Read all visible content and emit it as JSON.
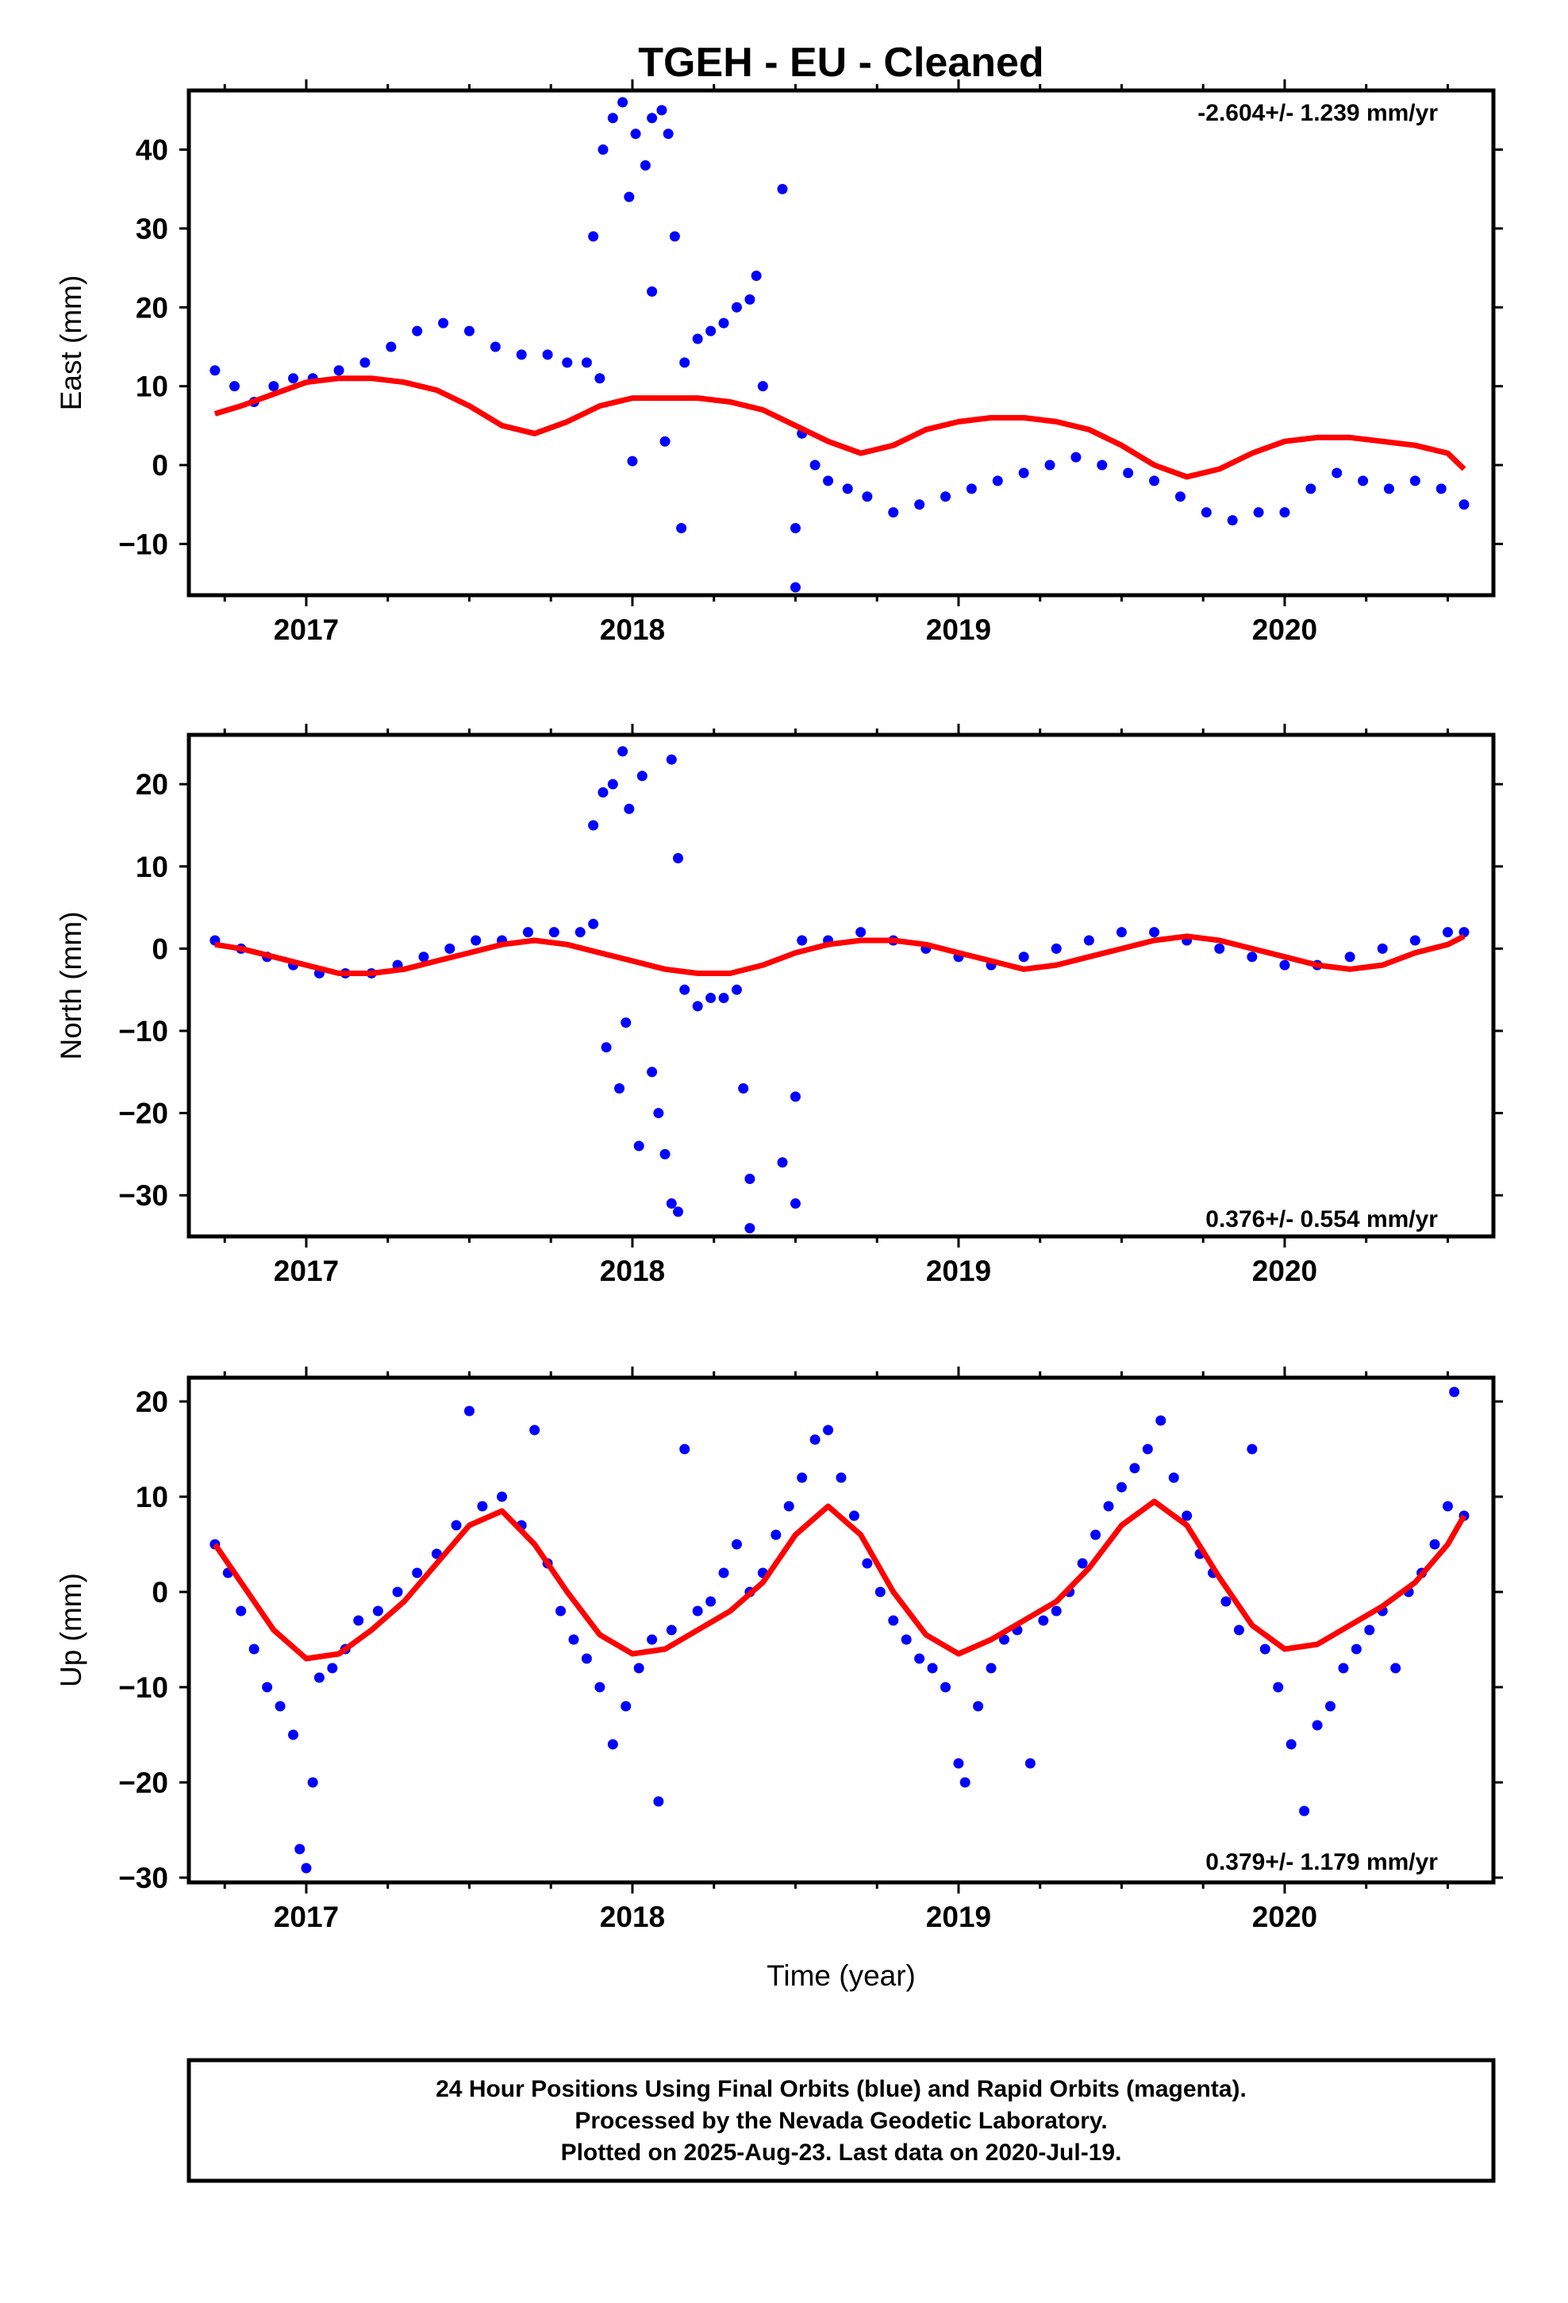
{
  "title": "TGEH  - EU - Cleaned",
  "xlabel": "Time (year)",
  "footer": [
    "24 Hour Positions Using Final Orbits (blue) and Rapid Orbits (magenta).",
    "Processed by the Nevada Geodetic Laboratory.",
    "Plotted on 2025-Aug-23. Last data on 2020-Jul-19."
  ],
  "colors": {
    "data": "#0000ff",
    "fit": "#ff0000",
    "frame": "#000000"
  },
  "chart_data": [
    {
      "type": "scatter",
      "ylabel": "East (mm)",
      "rate": "-2.604+/- 1.239 mm/yr",
      "xlim": [
        2016.64,
        2020.64
      ],
      "ylim": [
        -16.5,
        47.5
      ],
      "xticks": [
        2017,
        2018,
        2019,
        2020
      ],
      "xtick_labels": [
        "2017",
        "2018",
        "2019",
        "2020"
      ],
      "yticks": [
        -10,
        0,
        10,
        20,
        30,
        40
      ],
      "ytick_labels": [
        "−10",
        "0",
        "10",
        "20",
        "30",
        "40"
      ],
      "points": [
        [
          2016.72,
          12
        ],
        [
          2016.78,
          10
        ],
        [
          2016.84,
          8
        ],
        [
          2016.9,
          10
        ],
        [
          2016.96,
          11
        ],
        [
          2017.02,
          11
        ],
        [
          2017.1,
          12
        ],
        [
          2017.18,
          13
        ],
        [
          2017.26,
          15
        ],
        [
          2017.34,
          17
        ],
        [
          2017.42,
          18
        ],
        [
          2017.5,
          17
        ],
        [
          2017.58,
          15
        ],
        [
          2017.66,
          14
        ],
        [
          2017.74,
          14
        ],
        [
          2017.8,
          13
        ],
        [
          2017.86,
          13
        ],
        [
          2017.9,
          11
        ],
        [
          2017.88,
          29
        ],
        [
          2017.91,
          40
        ],
        [
          2017.94,
          44
        ],
        [
          2017.97,
          46
        ],
        [
          2017.99,
          34
        ],
        [
          2018.01,
          42
        ],
        [
          2018.04,
          38
        ],
        [
          2018.06,
          44
        ],
        [
          2018.09,
          45
        ],
        [
          2018.11,
          42
        ],
        [
          2018.13,
          29
        ],
        [
          2018.0,
          0.5
        ],
        [
          2018.06,
          22
        ],
        [
          2018.1,
          3
        ],
        [
          2018.15,
          -8
        ],
        [
          2018.16,
          13
        ],
        [
          2018.2,
          16
        ],
        [
          2018.24,
          17
        ],
        [
          2018.28,
          18
        ],
        [
          2018.32,
          20
        ],
        [
          2018.36,
          21
        ],
        [
          2018.38,
          24
        ],
        [
          2018.4,
          10
        ],
        [
          2018.46,
          35
        ],
        [
          2018.5,
          -8
        ],
        [
          2018.5,
          -15.5
        ],
        [
          2018.52,
          4
        ],
        [
          2018.56,
          0
        ],
        [
          2018.6,
          -2
        ],
        [
          2018.66,
          -3
        ],
        [
          2018.72,
          -4
        ],
        [
          2018.8,
          -6
        ],
        [
          2018.88,
          -5
        ],
        [
          2018.96,
          -4
        ],
        [
          2019.04,
          -3
        ],
        [
          2019.12,
          -2
        ],
        [
          2019.2,
          -1
        ],
        [
          2019.28,
          0
        ],
        [
          2019.36,
          1
        ],
        [
          2019.44,
          0
        ],
        [
          2019.52,
          -1
        ],
        [
          2019.6,
          -2
        ],
        [
          2019.68,
          -4
        ],
        [
          2019.76,
          -6
        ],
        [
          2019.84,
          -7
        ],
        [
          2019.92,
          -6
        ],
        [
          2020.0,
          -6
        ],
        [
          2020.08,
          -3
        ],
        [
          2020.16,
          -1
        ],
        [
          2020.24,
          -2
        ],
        [
          2020.32,
          -3
        ],
        [
          2020.4,
          -2
        ],
        [
          2020.48,
          -3
        ],
        [
          2020.55,
          -5
        ]
      ],
      "fit_x": [
        2016.72,
        2016.8,
        2016.9,
        2017.0,
        2017.1,
        2017.2,
        2017.3,
        2017.4,
        2017.5,
        2017.6,
        2017.7,
        2017.8,
        2017.9,
        2018.0,
        2018.1,
        2018.2,
        2018.3,
        2018.4,
        2018.5,
        2018.6,
        2018.7,
        2018.8,
        2018.9,
        2019.0,
        2019.1,
        2019.2,
        2019.3,
        2019.4,
        2019.5,
        2019.6,
        2019.7,
        2019.8,
        2019.9,
        2020.0,
        2020.1,
        2020.2,
        2020.3,
        2020.4,
        2020.5,
        2020.55
      ],
      "fit_y": [
        6.5,
        7.5,
        9,
        10.5,
        11,
        11,
        10.5,
        9.5,
        7.5,
        5,
        4,
        5.5,
        7.5,
        8.5,
        8.5,
        8.5,
        8,
        7,
        5,
        3,
        1.5,
        2.5,
        4.5,
        5.5,
        6,
        6,
        5.5,
        4.5,
        2.5,
        0,
        -1.5,
        -0.5,
        1.5,
        3,
        3.5,
        3.5,
        3,
        2.5,
        1.5,
        -0.5
      ]
    },
    {
      "type": "scatter",
      "ylabel": "North (mm)",
      "rate": "0.376+/- 0.554 mm/yr",
      "xlim": [
        2016.64,
        2020.64
      ],
      "ylim": [
        -35,
        26
      ],
      "xticks": [
        2017,
        2018,
        2019,
        2020
      ],
      "xtick_labels": [
        "2017",
        "2018",
        "2019",
        "2020"
      ],
      "yticks": [
        -30,
        -20,
        -10,
        0,
        10,
        20
      ],
      "ytick_labels": [
        "−30",
        "−20",
        "−10",
        "0",
        "10",
        "20"
      ],
      "points": [
        [
          2016.72,
          1
        ],
        [
          2016.8,
          0
        ],
        [
          2016.88,
          -1
        ],
        [
          2016.96,
          -2
        ],
        [
          2017.04,
          -3
        ],
        [
          2017.12,
          -3
        ],
        [
          2017.2,
          -3
        ],
        [
          2017.28,
          -2
        ],
        [
          2017.36,
          -1
        ],
        [
          2017.44,
          0
        ],
        [
          2017.52,
          1
        ],
        [
          2017.6,
          1
        ],
        [
          2017.68,
          2
        ],
        [
          2017.76,
          2
        ],
        [
          2017.84,
          2
        ],
        [
          2017.88,
          3
        ],
        [
          2017.88,
          15
        ],
        [
          2017.91,
          19
        ],
        [
          2017.94,
          20
        ],
        [
          2017.97,
          24
        ],
        [
          2017.99,
          17
        ],
        [
          2018.03,
          21
        ],
        [
          2018.12,
          23
        ],
        [
          2018.14,
          11
        ],
        [
          2017.92,
          -12
        ],
        [
          2017.96,
          -17
        ],
        [
          2017.98,
          -9
        ],
        [
          2018.02,
          -24
        ],
        [
          2018.06,
          -15
        ],
        [
          2018.08,
          -20
        ],
        [
          2018.1,
          -25
        ],
        [
          2018.12,
          -31
        ],
        [
          2018.14,
          -32
        ],
        [
          2018.16,
          -5
        ],
        [
          2018.2,
          -7
        ],
        [
          2018.24,
          -6
        ],
        [
          2018.28,
          -6
        ],
        [
          2018.32,
          -5
        ],
        [
          2018.34,
          -17
        ],
        [
          2018.36,
          -28
        ],
        [
          2018.36,
          -34
        ],
        [
          2018.46,
          -26
        ],
        [
          2018.5,
          -31
        ],
        [
          2018.5,
          -18
        ],
        [
          2018.52,
          1
        ],
        [
          2018.6,
          1
        ],
        [
          2018.7,
          2
        ],
        [
          2018.8,
          1
        ],
        [
          2018.9,
          0
        ],
        [
          2019.0,
          -1
        ],
        [
          2019.1,
          -2
        ],
        [
          2019.2,
          -1
        ],
        [
          2019.3,
          0
        ],
        [
          2019.4,
          1
        ],
        [
          2019.5,
          2
        ],
        [
          2019.6,
          2
        ],
        [
          2019.7,
          1
        ],
        [
          2019.8,
          0
        ],
        [
          2019.9,
          -1
        ],
        [
          2020.0,
          -2
        ],
        [
          2020.1,
          -2
        ],
        [
          2020.2,
          -1
        ],
        [
          2020.3,
          0
        ],
        [
          2020.4,
          1
        ],
        [
          2020.5,
          2
        ],
        [
          2020.55,
          2
        ]
      ],
      "fit_x": [
        2016.72,
        2016.8,
        2016.9,
        2017.0,
        2017.1,
        2017.2,
        2017.3,
        2017.4,
        2017.5,
        2017.6,
        2017.7,
        2017.8,
        2017.9,
        2018.0,
        2018.1,
        2018.2,
        2018.3,
        2018.4,
        2018.5,
        2018.6,
        2018.7,
        2018.8,
        2018.9,
        2019.0,
        2019.1,
        2019.2,
        2019.3,
        2019.4,
        2019.5,
        2019.6,
        2019.7,
        2019.8,
        2019.9,
        2020.0,
        2020.1,
        2020.2,
        2020.3,
        2020.4,
        2020.5,
        2020.55
      ],
      "fit_y": [
        0.5,
        0,
        -1,
        -2,
        -3,
        -3,
        -2.5,
        -1.5,
        -0.5,
        0.5,
        1,
        0.5,
        -0.5,
        -1.5,
        -2.5,
        -3,
        -3,
        -2,
        -0.5,
        0.5,
        1,
        1,
        0.5,
        -0.5,
        -1.5,
        -2.5,
        -2,
        -1,
        0,
        1,
        1.5,
        1,
        0,
        -1,
        -2,
        -2.5,
        -2,
        -0.5,
        0.5,
        1.5
      ]
    },
    {
      "type": "scatter",
      "ylabel": "Up (mm)",
      "rate": "0.379+/- 1.179 mm/yr",
      "xlim": [
        2016.64,
        2020.64
      ],
      "ylim": [
        -30.5,
        22.5
      ],
      "xticks": [
        2017,
        2018,
        2019,
        2020
      ],
      "xtick_labels": [
        "2017",
        "2018",
        "2019",
        "2020"
      ],
      "yticks": [
        -30,
        -20,
        -10,
        0,
        10,
        20
      ],
      "ytick_labels": [
        "−30",
        "−20",
        "−10",
        "0",
        "10",
        "20"
      ],
      "points": [
        [
          2016.72,
          5
        ],
        [
          2016.76,
          2
        ],
        [
          2016.8,
          -2
        ],
        [
          2016.84,
          -6
        ],
        [
          2016.88,
          -10
        ],
        [
          2016.92,
          -12
        ],
        [
          2016.96,
          -15
        ],
        [
          2016.98,
          -27
        ],
        [
          2017.0,
          -29
        ],
        [
          2017.02,
          -20
        ],
        [
          2017.04,
          -9
        ],
        [
          2017.08,
          -8
        ],
        [
          2017.12,
          -6
        ],
        [
          2017.16,
          -3
        ],
        [
          2017.22,
          -2
        ],
        [
          2017.28,
          0
        ],
        [
          2017.34,
          2
        ],
        [
          2017.4,
          4
        ],
        [
          2017.46,
          7
        ],
        [
          2017.5,
          19
        ],
        [
          2017.54,
          9
        ],
        [
          2017.6,
          10
        ],
        [
          2017.66,
          7
        ],
        [
          2017.7,
          17
        ],
        [
          2017.74,
          3
        ],
        [
          2017.78,
          -2
        ],
        [
          2017.82,
          -5
        ],
        [
          2017.86,
          -7
        ],
        [
          2017.9,
          -10
        ],
        [
          2017.94,
          -16
        ],
        [
          2017.98,
          -12
        ],
        [
          2018.02,
          -8
        ],
        [
          2018.06,
          -5
        ],
        [
          2018.08,
          -22
        ],
        [
          2018.12,
          -4
        ],
        [
          2018.16,
          15
        ],
        [
          2018.2,
          -2
        ],
        [
          2018.24,
          -1
        ],
        [
          2018.28,
          2
        ],
        [
          2018.32,
          5
        ],
        [
          2018.36,
          0
        ],
        [
          2018.4,
          2
        ],
        [
          2018.44,
          6
        ],
        [
          2018.48,
          9
        ],
        [
          2018.52,
          12
        ],
        [
          2018.56,
          16
        ],
        [
          2018.6,
          17
        ],
        [
          2018.64,
          12
        ],
        [
          2018.68,
          8
        ],
        [
          2018.72,
          3
        ],
        [
          2018.76,
          0
        ],
        [
          2018.8,
          -3
        ],
        [
          2018.84,
          -5
        ],
        [
          2018.88,
          -7
        ],
        [
          2018.92,
          -8
        ],
        [
          2018.96,
          -10
        ],
        [
          2019.0,
          -18
        ],
        [
          2019.02,
          -20
        ],
        [
          2019.06,
          -12
        ],
        [
          2019.1,
          -8
        ],
        [
          2019.14,
          -5
        ],
        [
          2019.18,
          -4
        ],
        [
          2019.22,
          -18
        ],
        [
          2019.26,
          -3
        ],
        [
          2019.3,
          -2
        ],
        [
          2019.34,
          0
        ],
        [
          2019.38,
          3
        ],
        [
          2019.42,
          6
        ],
        [
          2019.46,
          9
        ],
        [
          2019.5,
          11
        ],
        [
          2019.54,
          13
        ],
        [
          2019.58,
          15
        ],
        [
          2019.62,
          18
        ],
        [
          2019.66,
          12
        ],
        [
          2019.7,
          8
        ],
        [
          2019.74,
          4
        ],
        [
          2019.78,
          2
        ],
        [
          2019.82,
          -1
        ],
        [
          2019.86,
          -4
        ],
        [
          2019.9,
          15
        ],
        [
          2019.94,
          -6
        ],
        [
          2019.98,
          -10
        ],
        [
          2020.02,
          -16
        ],
        [
          2020.06,
          -23
        ],
        [
          2020.1,
          -14
        ],
        [
          2020.14,
          -12
        ],
        [
          2020.18,
          -8
        ],
        [
          2020.22,
          -6
        ],
        [
          2020.26,
          -4
        ],
        [
          2020.3,
          -2
        ],
        [
          2020.34,
          -8
        ],
        [
          2020.38,
          0
        ],
        [
          2020.42,
          2
        ],
        [
          2020.46,
          5
        ],
        [
          2020.5,
          9
        ],
        [
          2020.52,
          21
        ],
        [
          2020.55,
          8
        ]
      ],
      "fit_x": [
        2016.72,
        2016.8,
        2016.9,
        2017.0,
        2017.1,
        2017.2,
        2017.3,
        2017.4,
        2017.5,
        2017.6,
        2017.7,
        2017.8,
        2017.9,
        2018.0,
        2018.1,
        2018.2,
        2018.3,
        2018.4,
        2018.5,
        2018.6,
        2018.7,
        2018.8,
        2018.9,
        2019.0,
        2019.1,
        2019.2,
        2019.3,
        2019.4,
        2019.5,
        2019.6,
        2019.7,
        2019.8,
        2019.9,
        2020.0,
        2020.1,
        2020.2,
        2020.3,
        2020.4,
        2020.5,
        2020.55
      ],
      "fit_y": [
        5,
        1,
        -4,
        -7,
        -6.5,
        -4,
        -1,
        3,
        7,
        8.5,
        5,
        0,
        -4.5,
        -6.5,
        -6,
        -4,
        -2,
        1,
        6,
        9,
        6,
        0,
        -4.5,
        -6.5,
        -5,
        -3,
        -1,
        2.5,
        7,
        9.5,
        7,
        1.5,
        -3.5,
        -6,
        -5.5,
        -3.5,
        -1.5,
        1,
        5,
        8
      ]
    }
  ]
}
